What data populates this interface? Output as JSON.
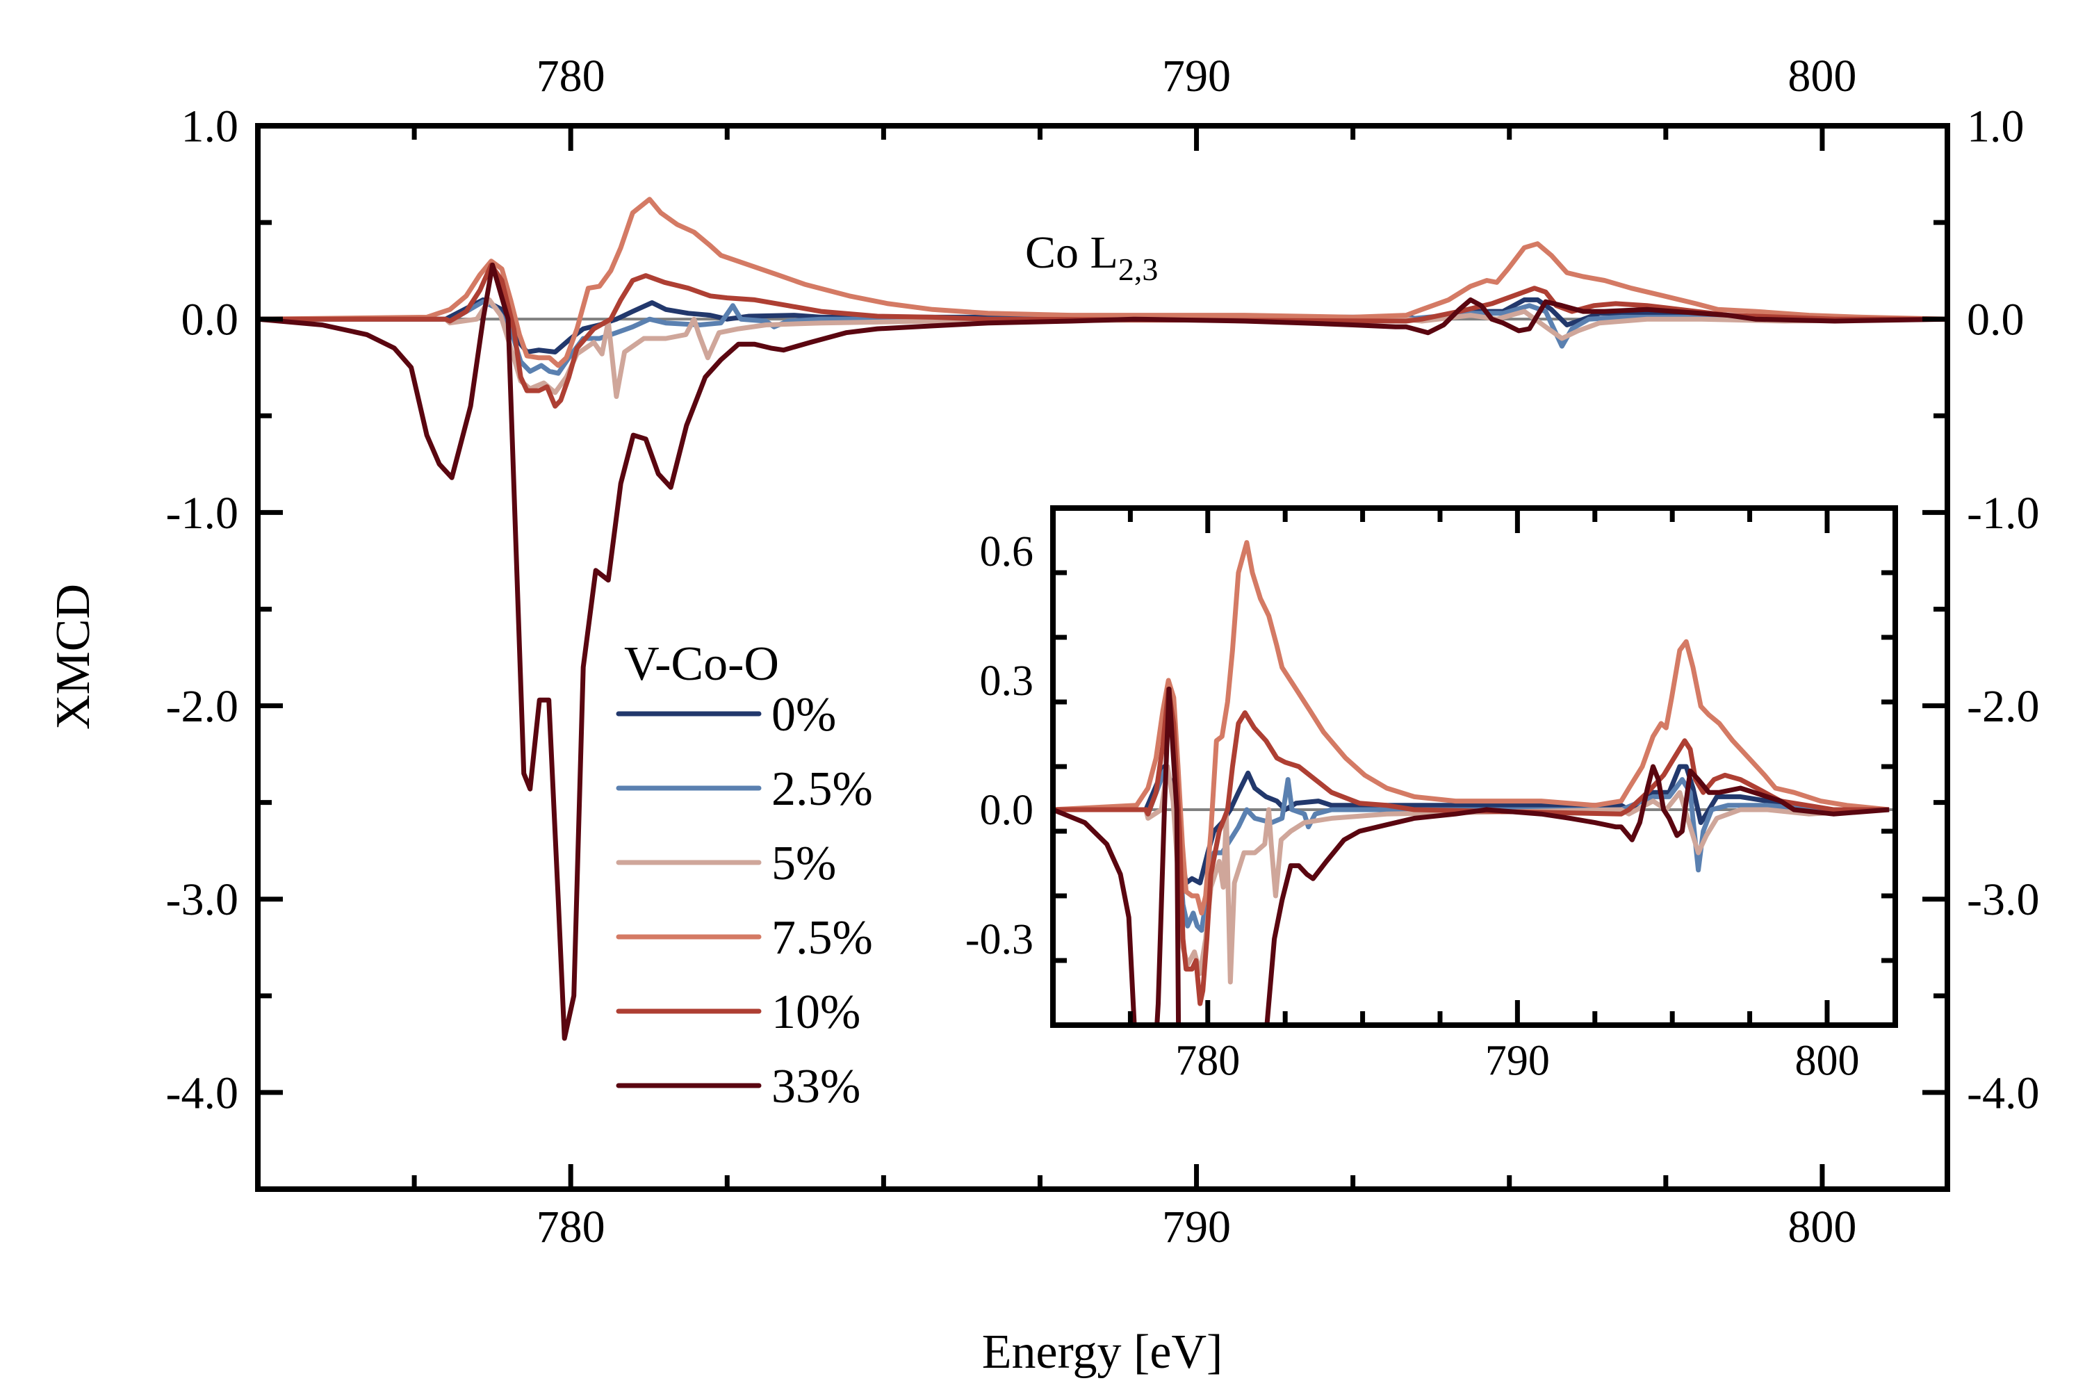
{
  "chart_data": {
    "type": "line",
    "xlabel": "Energy [eV]",
    "ylabel": "XMCD",
    "annotation": {
      "base": "Co L",
      "subscript": "2,3"
    },
    "xlim": [
      775,
      802
    ],
    "ylim": [
      -4.5,
      1.0
    ],
    "xticks": [
      780,
      790,
      800
    ],
    "yticks": [
      1.0,
      0.0,
      -1.0,
      -2.0,
      -3.0,
      -4.0
    ],
    "ytick_labels": [
      "1.0",
      "0.0",
      "-1.0",
      "-2.0",
      "-3.0",
      "-4.0"
    ],
    "xtick_labels": [
      "780",
      "790",
      "800"
    ],
    "zero_line": true,
    "grid": false,
    "legend": {
      "title": "V-Co-O",
      "placement": "center-left"
    },
    "inset": {
      "xlim": [
        775,
        802.2
      ],
      "ylim": [
        -0.5,
        0.7
      ],
      "xticks": [
        780,
        790,
        800
      ],
      "xtick_labels": [
        "780",
        "790",
        "800"
      ],
      "yticks": [
        0.6,
        0.3,
        0.0,
        -0.3
      ],
      "ytick_labels": [
        "0.6",
        "0.3",
        "0.0",
        "-0.3"
      ]
    },
    "series": [
      {
        "name": "0%",
        "color": "#22386c",
        "x": [
          775,
          778,
          778.6,
          778.9,
          779.13,
          779.3,
          779.49,
          779.75,
          780.0,
          780.2,
          780.46,
          780.73,
          780.99,
          781.3,
          781.52,
          781.88,
          782.23,
          782.5,
          782.85,
          783.57,
          784,
          784.9,
          789,
          793.35,
          793.6,
          794.38,
          794.9,
          795.24,
          795.45,
          795.67,
          795.92,
          796.1,
          796.44,
          797.2,
          798.07,
          798.93,
          802
        ],
        "y": [
          0,
          0,
          0.1,
          0.05,
          -0.1,
          -0.17,
          -0.16,
          -0.17,
          -0.1,
          -0.05,
          -0.03,
          0,
          0.04,
          0.085,
          0.05,
          0.03,
          0.02,
          0,
          0.015,
          0.02,
          0.01,
          0.01,
          0.01,
          0.01,
          0,
          0.04,
          0.04,
          0.1,
          0.1,
          0.05,
          -0.03,
          -0.01,
          0.03,
          0.03,
          0.02,
          0,
          0
        ]
      },
      {
        "name": "2.5%",
        "color": "#5a80b0",
        "x": [
          775,
          778,
          778.07,
          778.6,
          778.8,
          779.04,
          779.2,
          779.35,
          779.53,
          779.66,
          779.8,
          779.97,
          780.2,
          780.46,
          780.73,
          780.99,
          781.26,
          781.52,
          782.06,
          782.4,
          782.59,
          782.72,
          783.12,
          783.25,
          783.47,
          784,
          793.35,
          794.38,
          794.9,
          795.32,
          795.58,
          795.84,
          796.0,
          796.27,
          796.8,
          798.07,
          799.5,
          802
        ],
        "y": [
          0,
          0,
          -0.01,
          0.09,
          0.06,
          -0.05,
          -0.22,
          -0.27,
          -0.24,
          -0.27,
          -0.28,
          -0.2,
          -0.1,
          -0.1,
          -0.07,
          -0.04,
          0,
          -0.02,
          -0.03,
          -0.02,
          0.07,
          0,
          -0.01,
          -0.04,
          -0.01,
          0,
          0,
          0.03,
          0.03,
          0.07,
          0.04,
          -0.14,
          -0.05,
          0,
          0.01,
          0.01,
          0,
          0
        ]
      },
      {
        "name": "5%",
        "color": "#cfa69a",
        "x": [
          775,
          778,
          778.07,
          778.5,
          778.7,
          778.88,
          779.09,
          779.2,
          779.35,
          779.57,
          779.75,
          779.93,
          780.1,
          780.37,
          780.5,
          780.6,
          780.73,
          780.86,
          781.17,
          781.52,
          781.84,
          781.97,
          782.05,
          782.19,
          782.37,
          782.68,
          783.12,
          784,
          785.78,
          793.35,
          793.6,
          794.38,
          794.8,
          795.24,
          795.58,
          795.84,
          796.1,
          796.44,
          797.2,
          798.07,
          799.4,
          802
        ],
        "y": [
          0,
          0,
          -0.02,
          0,
          0.1,
          0.02,
          -0.2,
          -0.32,
          -0.36,
          -0.33,
          -0.38,
          -0.3,
          -0.18,
          -0.12,
          -0.18,
          -0.01,
          -0.4,
          -0.17,
          -0.1,
          -0.1,
          -0.08,
          0,
          -0.08,
          -0.2,
          -0.07,
          -0.05,
          -0.03,
          -0.02,
          -0.01,
          0,
          -0.01,
          0.02,
          0,
          0.04,
          -0.04,
          -0.1,
          -0.06,
          -0.02,
          0,
          0,
          -0.01,
          0
        ]
      },
      {
        "name": "7.5%",
        "color": "#d47a64",
        "x": [
          775,
          777.7,
          778.07,
          778.33,
          778.55,
          778.73,
          778.9,
          779.04,
          779.18,
          779.3,
          779.49,
          779.66,
          779.8,
          779.93,
          780.1,
          780.28,
          780.46,
          780.64,
          780.8,
          780.99,
          781.26,
          781.44,
          781.7,
          781.97,
          782.23,
          782.4,
          782.85,
          783.3,
          783.74,
          784.45,
          785.07,
          785.78,
          786.67,
          788,
          790.77,
          792.5,
          793.35,
          793.6,
          794.03,
          794.38,
          794.64,
          794.8,
          794.98,
          795.24,
          795.45,
          795.67,
          795.92,
          796.18,
          796.52,
          796.95,
          797.47,
          797.98,
          798.33,
          798.93,
          799.79,
          800.64,
          802
        ],
        "y": [
          0,
          0.01,
          0.05,
          0.12,
          0.23,
          0.3,
          0.26,
          0.1,
          -0.08,
          -0.19,
          -0.2,
          -0.2,
          -0.24,
          -0.2,
          -0.05,
          0.16,
          0.17,
          0.25,
          0.37,
          0.55,
          0.62,
          0.55,
          0.49,
          0.45,
          0.38,
          0.33,
          0.28,
          0.23,
          0.18,
          0.12,
          0.08,
          0.05,
          0.03,
          0.02,
          0.02,
          0.01,
          0.02,
          0.05,
          0.1,
          0.17,
          0.2,
          0.19,
          0.26,
          0.37,
          0.39,
          0.33,
          0.24,
          0.22,
          0.2,
          0.16,
          0.12,
          0.08,
          0.05,
          0.04,
          0.02,
          0.01,
          0
        ]
      },
      {
        "name": "10%",
        "color": "#ae3f33",
        "x": [
          775,
          778,
          778.07,
          778.33,
          778.55,
          778.73,
          778.9,
          779.09,
          779.2,
          779.3,
          779.49,
          779.62,
          779.75,
          779.84,
          779.97,
          780.1,
          780.37,
          780.64,
          780.8,
          780.99,
          781.2,
          781.5,
          781.88,
          782.23,
          782.5,
          782.94,
          783.47,
          784,
          784.9,
          785.78,
          786.67,
          793.35,
          793.6,
          794.2,
          794.72,
          795.06,
          795.4,
          795.58,
          795.75,
          796.0,
          796.35,
          796.7,
          797.2,
          797.73,
          798.5,
          799.36,
          800.2,
          802
        ],
        "y": [
          0,
          0,
          -0.01,
          0.04,
          0.15,
          0.28,
          0.2,
          -0.05,
          -0.3,
          -0.37,
          -0.37,
          -0.35,
          -0.45,
          -0.42,
          -0.3,
          -0.15,
          -0.05,
          0,
          0.1,
          0.2,
          0.225,
          0.19,
          0.16,
          0.12,
          0.11,
          0.1,
          0.07,
          0.04,
          0.015,
          0.01,
          0,
          -0.01,
          0,
          0.04,
          0.08,
          0.12,
          0.16,
          0.14,
          0.07,
          0.04,
          0.07,
          0.08,
          0.07,
          0.05,
          0.02,
          0.01,
          0,
          0
        ]
      },
      {
        "name": "33%",
        "color": "#5a0610",
        "x": [
          775,
          776.03,
          776.74,
          777.18,
          777.45,
          777.7,
          777.9,
          778.1,
          778.4,
          778.6,
          778.75,
          779.0,
          779.25,
          779.35,
          779.5,
          779.65,
          779.8,
          779.9,
          780.05,
          780.2,
          780.4,
          780.6,
          780.8,
          781.0,
          781.2,
          781.4,
          781.6,
          781.85,
          782.15,
          782.4,
          782.68,
          782.94,
          783.2,
          783.4,
          783.83,
          784.4,
          784.9,
          785.78,
          786.67,
          788,
          789,
          790.77,
          791.7,
          792.5,
          793.18,
          793.35,
          793.7,
          793.95,
          794.2,
          794.38,
          794.55,
          794.72,
          794.9,
          795.15,
          795.32,
          795.58,
          795.84,
          796.18,
          796.52,
          797.2,
          797.64,
          798.5,
          798.93,
          800.2,
          802
        ],
        "y": [
          0,
          -0.03,
          -0.08,
          -0.15,
          -0.25,
          -0.6,
          -0.75,
          -0.82,
          -0.45,
          0,
          0.28,
          0,
          -2.35,
          -2.43,
          -1.97,
          -1.97,
          -3.0,
          -3.72,
          -3.5,
          -1.8,
          -1.3,
          -1.35,
          -0.85,
          -0.6,
          -0.62,
          -0.8,
          -0.87,
          -0.55,
          -0.3,
          -0.21,
          -0.13,
          -0.13,
          -0.15,
          -0.16,
          -0.12,
          -0.07,
          -0.05,
          -0.035,
          -0.02,
          -0.01,
          0,
          -0.01,
          -0.02,
          -0.03,
          -0.04,
          -0.04,
          -0.07,
          -0.03,
          0.05,
          0.1,
          0.07,
          0,
          -0.02,
          -0.06,
          -0.05,
          0.09,
          0.07,
          0.04,
          0.04,
          0.05,
          0.04,
          0.02,
          0,
          -0.01,
          0
        ]
      }
    ]
  }
}
